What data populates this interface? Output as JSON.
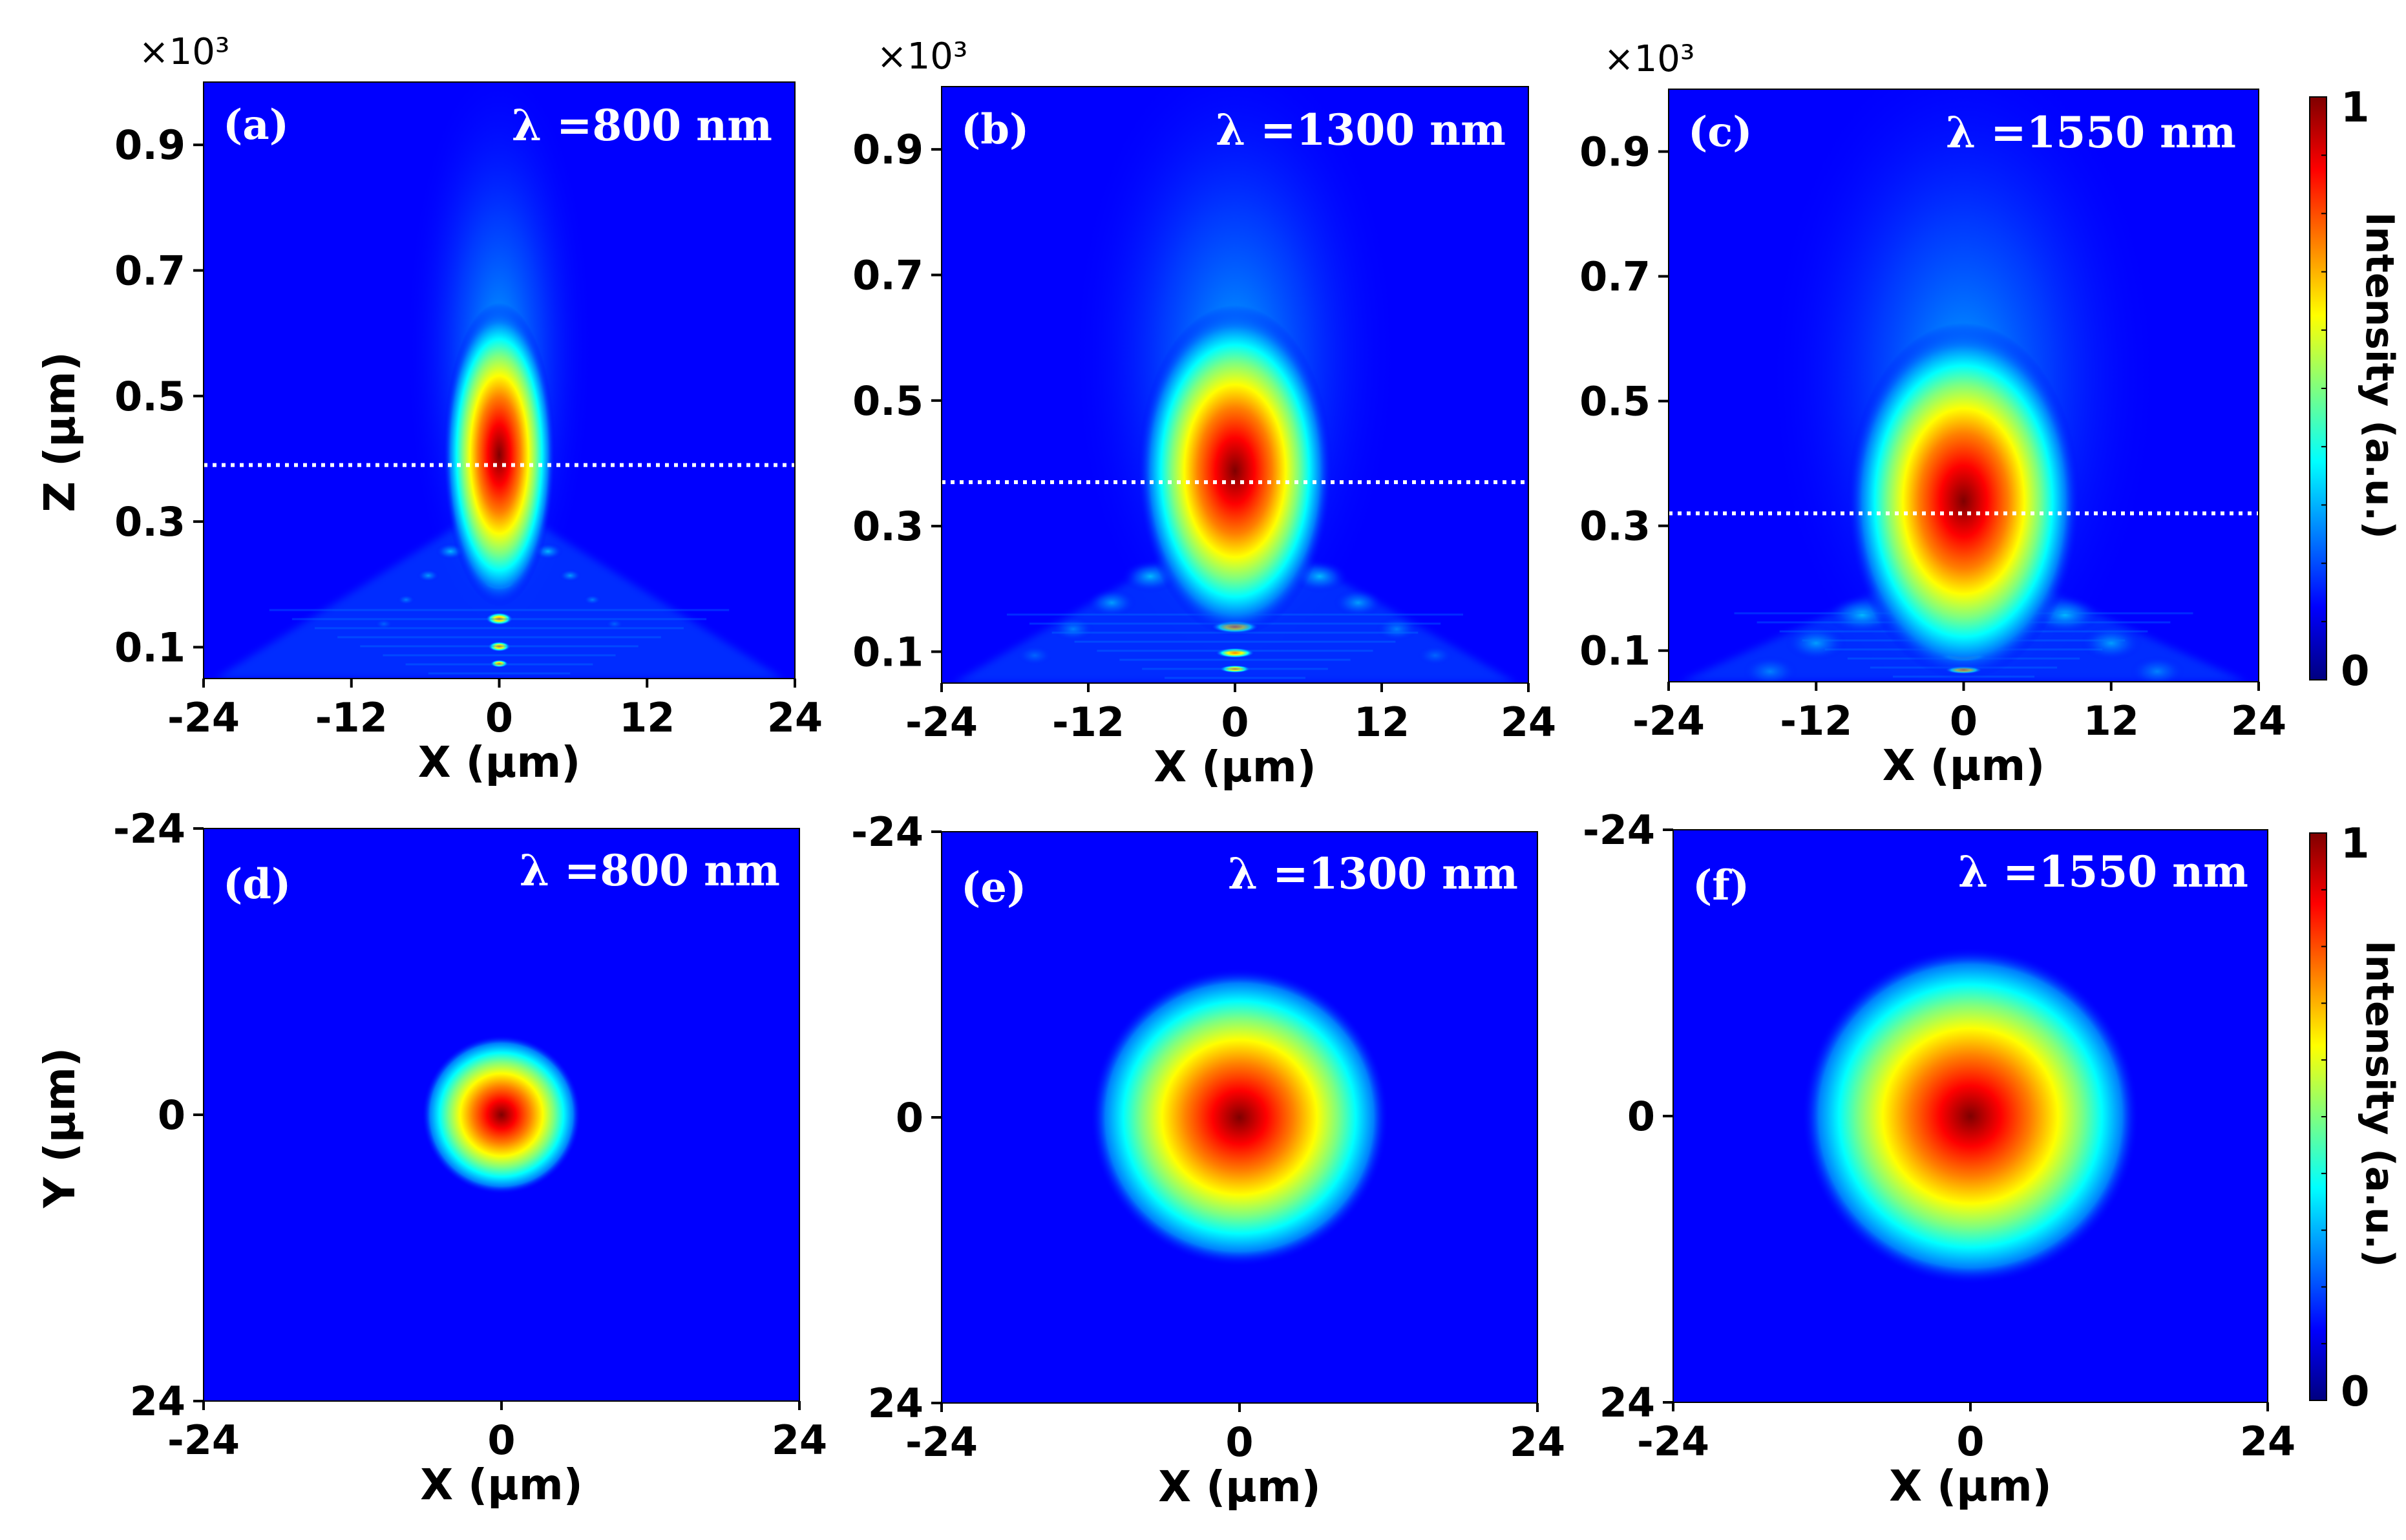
{
  "colors": {
    "jet": [
      "#00007f",
      "#0000ff",
      "#007fff",
      "#00ffff",
      "#7fff7f",
      "#ffff00",
      "#ff7f00",
      "#ff0000",
      "#7f0000"
    ],
    "dotted_line": "#ffffff",
    "axis": "#000000"
  },
  "colorbars": [
    {
      "title": "Intensity (a.u.)",
      "max_label": "1",
      "min_label": "0",
      "range": [
        0,
        1
      ]
    },
    {
      "title": "Intensity (a.u.)",
      "max_label": "1",
      "min_label": "0",
      "range": [
        0,
        1
      ]
    }
  ],
  "chart_data": [
    {
      "type": "heatmap",
      "panel": "(a)",
      "lambda_label": "λ =800 nm",
      "xlabel": "X (µm)",
      "ylabel": "Z (µm)",
      "y_multiplier": "×10³",
      "xlim": [
        -24,
        24
      ],
      "ylim": [
        0.05,
        1.0
      ],
      "x_ticks": [
        -24,
        -12,
        0,
        12,
        24
      ],
      "x_tick_labels": [
        "-24",
        "-12",
        "0",
        "12",
        "24"
      ],
      "y_ticks": [
        0.1,
        0.3,
        0.5,
        0.7,
        0.9
      ],
      "y_tick_labels": [
        "0.1",
        "0.3",
        "0.5",
        "0.7",
        "0.9"
      ],
      "focus_z": 0.39,
      "focus_width_um": 2.4,
      "focus_length": 0.11,
      "dotted_line_z": 0.39
    },
    {
      "type": "heatmap",
      "panel": "(b)",
      "lambda_label": "λ =1300 nm",
      "xlabel": "X (µm)",
      "ylabel": "",
      "y_multiplier": "×10³",
      "xlim": [
        -24,
        24
      ],
      "ylim": [
        0.05,
        1.0
      ],
      "x_ticks": [
        -24,
        -12,
        0,
        12,
        24
      ],
      "x_tick_labels": [
        "-24",
        "-12",
        "0",
        "12",
        "24"
      ],
      "y_ticks": [
        0.1,
        0.3,
        0.5,
        0.7,
        0.9
      ],
      "y_tick_labels": [
        "0.1",
        "0.3",
        "0.5",
        "0.7",
        "0.9"
      ],
      "focus_z": 0.37,
      "focus_width_um": 4.2,
      "focus_length": 0.12,
      "dotted_line_z": 0.37
    },
    {
      "type": "heatmap",
      "panel": "(c)",
      "lambda_label": "λ =1550 nm",
      "xlabel": "X (µm)",
      "ylabel": "",
      "y_multiplier": "×10³",
      "xlim": [
        -24,
        24
      ],
      "ylim": [
        0.05,
        1.0
      ],
      "x_ticks": [
        -24,
        -12,
        0,
        12,
        24
      ],
      "x_tick_labels": [
        "-24",
        "-12",
        "0",
        "12",
        "24"
      ],
      "y_ticks": [
        0.1,
        0.3,
        0.5,
        0.7,
        0.9
      ],
      "y_tick_labels": [
        "0.1",
        "0.3",
        "0.5",
        "0.7",
        "0.9"
      ],
      "focus_z": 0.32,
      "focus_width_um": 5.0,
      "focus_length": 0.13,
      "dotted_line_z": 0.32
    },
    {
      "type": "heatmap",
      "panel": "(d)",
      "lambda_label": "λ =800 nm",
      "xlabel": "X (µm)",
      "ylabel": "Y (µm)",
      "xlim": [
        -24,
        24
      ],
      "ylim": [
        -24,
        24
      ],
      "x_ticks": [
        -24,
        0,
        24
      ],
      "x_tick_labels": [
        "-24",
        "0",
        "24"
      ],
      "y_ticks": [
        -24,
        0,
        24
      ],
      "y_tick_labels": [
        "-24",
        "0",
        "24"
      ],
      "spot_center": [
        0,
        0
      ],
      "spot_radius_um": 3.2
    },
    {
      "type": "heatmap",
      "panel": "(e)",
      "lambda_label": "λ =1300 nm",
      "xlabel": "X (µm)",
      "ylabel": "",
      "xlim": [
        -24,
        24
      ],
      "ylim": [
        -24,
        24
      ],
      "x_ticks": [
        -24,
        0,
        24
      ],
      "x_tick_labels": [
        "-24",
        "0",
        "24"
      ],
      "y_ticks": [
        -24,
        0,
        24
      ],
      "y_tick_labels": [
        "-24",
        "0",
        "24"
      ],
      "spot_center": [
        0,
        0
      ],
      "spot_radius_um": 6.0
    },
    {
      "type": "heatmap",
      "panel": "(f)",
      "lambda_label": "λ =1550 nm",
      "xlabel": "X (µm)",
      "ylabel": "",
      "xlim": [
        -24,
        24
      ],
      "ylim": [
        -24,
        24
      ],
      "x_ticks": [
        -24,
        0,
        24
      ],
      "x_tick_labels": [
        "-24",
        "0",
        "24"
      ],
      "y_ticks": [
        -24,
        0,
        24
      ],
      "y_tick_labels": [
        "-24",
        "0",
        "24"
      ],
      "spot_center": [
        0,
        0
      ],
      "spot_radius_um": 6.8
    }
  ]
}
